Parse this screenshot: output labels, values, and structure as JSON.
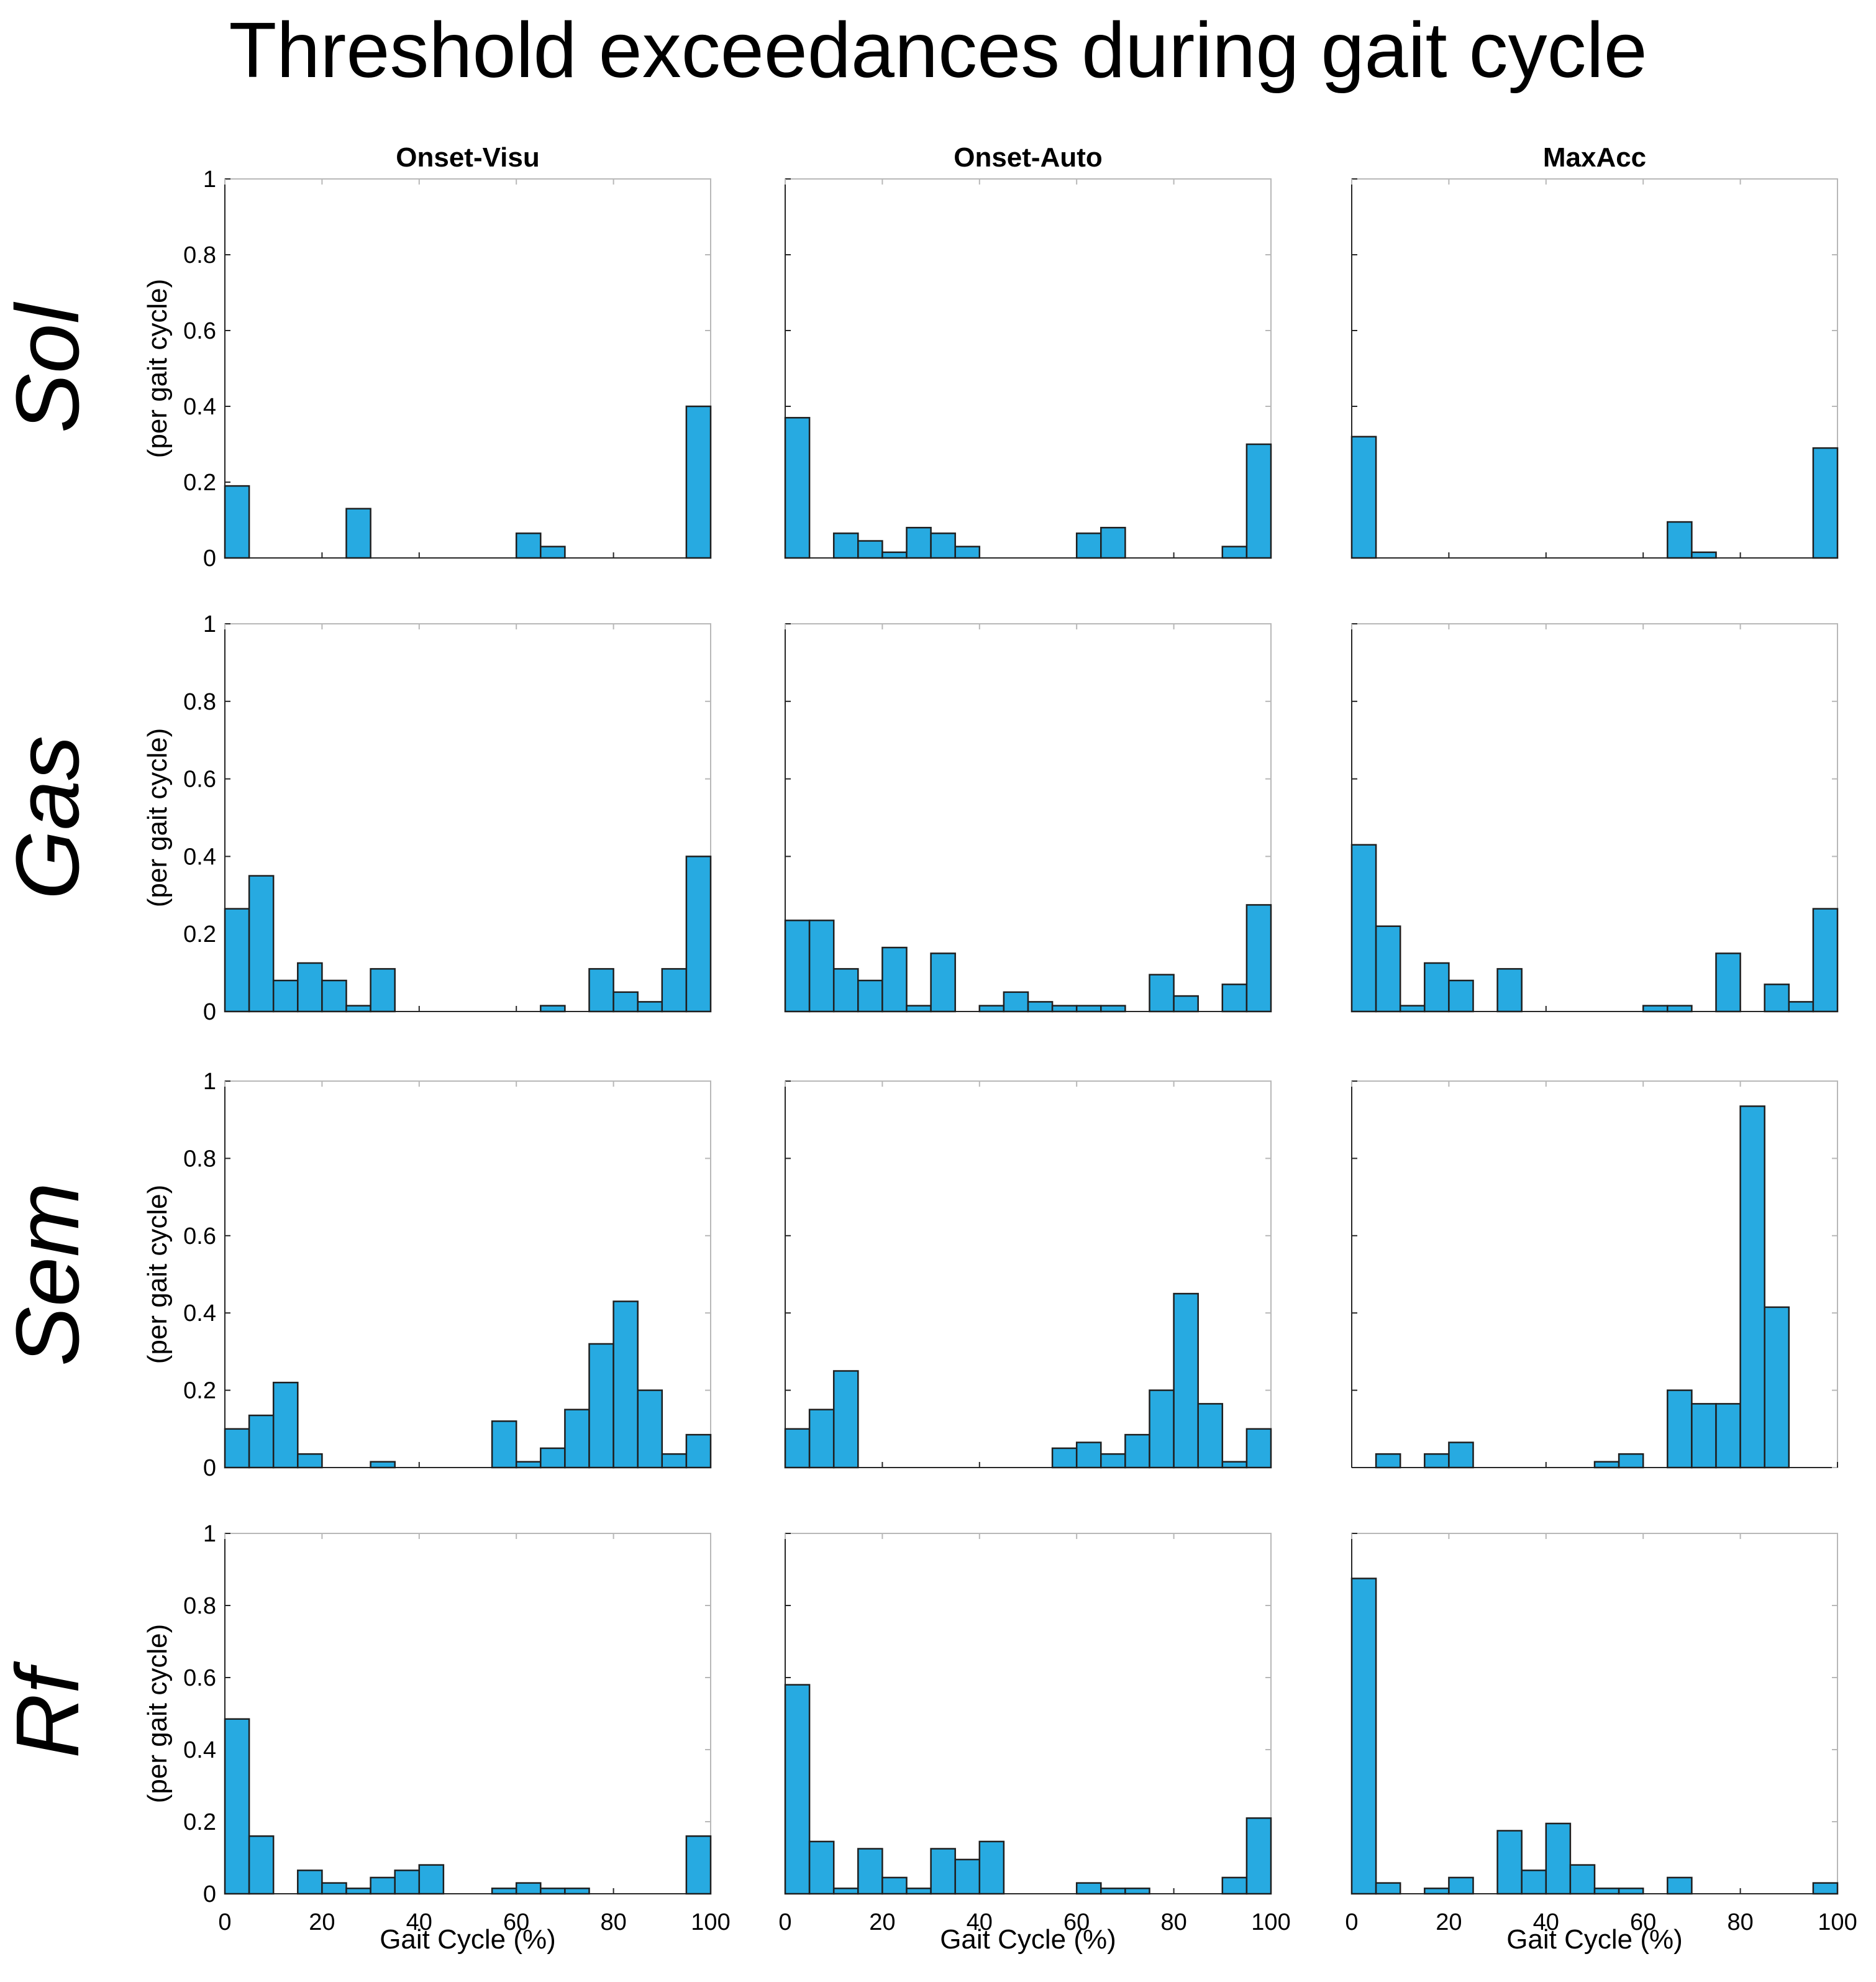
{
  "figure": {
    "title": "Threshold exceedances during gait cycle",
    "columns": [
      "Onset-Visu",
      "Onset-Auto",
      "MaxAcc"
    ],
    "rows": [
      "Sol",
      "Gas",
      "Sem",
      "Rf"
    ],
    "ylabel": "(per gait cycle)",
    "xlabel": "Gait Cycle (%)",
    "bar_color": "#27AAE1",
    "edge_color": "#1f1f1f"
  },
  "chart_data": {
    "type": "bar",
    "bin_edges": [
      0,
      5,
      10,
      15,
      20,
      25,
      30,
      35,
      40,
      45,
      50,
      55,
      60,
      65,
      70,
      75,
      80,
      85,
      90,
      95,
      100
    ],
    "xlim": [
      0,
      100
    ],
    "ylim": [
      0,
      1
    ],
    "xticks": [
      0,
      20,
      40,
      60,
      80,
      100
    ],
    "yticks": [
      0,
      0.2,
      0.4,
      0.6,
      0.8,
      1
    ],
    "panels": [
      {
        "row": "Sol",
        "col": "Onset-Visu",
        "values": [
          0.19,
          0,
          0,
          0,
          0,
          0.13,
          0,
          0,
          0,
          0,
          0,
          0,
          0.065,
          0.03,
          0,
          0,
          0,
          0,
          0,
          0.4
        ]
      },
      {
        "row": "Sol",
        "col": "Onset-Auto",
        "values": [
          0.37,
          0,
          0.065,
          0.045,
          0.015,
          0.08,
          0.065,
          0.03,
          0,
          0,
          0,
          0,
          0.065,
          0.08,
          0,
          0,
          0,
          0,
          0.03,
          0.3
        ]
      },
      {
        "row": "Sol",
        "col": "MaxAcc",
        "values": [
          0.32,
          0,
          0,
          0,
          0,
          0,
          0,
          0,
          0,
          0,
          0,
          0,
          0,
          0.095,
          0.015,
          0,
          0,
          0,
          0,
          0.29
        ]
      },
      {
        "row": "Gas",
        "col": "Onset-Visu",
        "values": [
          0.265,
          0.35,
          0.08,
          0.125,
          0.08,
          0.015,
          0.11,
          0,
          0,
          0,
          0,
          0,
          0,
          0.015,
          0,
          0.11,
          0.05,
          0.025,
          0.11,
          0.4
        ]
      },
      {
        "row": "Gas",
        "col": "Onset-Auto",
        "values": [
          0.235,
          0.235,
          0.11,
          0.08,
          0.165,
          0.015,
          0.15,
          0,
          0.015,
          0.05,
          0.025,
          0.015,
          0.015,
          0.015,
          0,
          0.095,
          0.04,
          0,
          0.07,
          0.275
        ]
      },
      {
        "row": "Gas",
        "col": "MaxAcc",
        "values": [
          0.43,
          0.22,
          0.015,
          0.125,
          0.08,
          0,
          0.11,
          0,
          0,
          0,
          0,
          0,
          0.015,
          0.015,
          0,
          0.15,
          0,
          0.07,
          0.025,
          0.265
        ]
      },
      {
        "row": "Sem",
        "col": "Onset-Visu",
        "values": [
          0.1,
          0.135,
          0.22,
          0.035,
          0,
          0,
          0.015,
          0,
          0,
          0,
          0,
          0.12,
          0.015,
          0.05,
          0.15,
          0.32,
          0.43,
          0.2,
          0.035,
          0.085
        ]
      },
      {
        "row": "Sem",
        "col": "Onset-Auto",
        "values": [
          0.1,
          0.15,
          0.25,
          0,
          0,
          0,
          0,
          0,
          0,
          0,
          0,
          0.05,
          0.065,
          0.035,
          0.085,
          0.2,
          0.45,
          0.165,
          0.015,
          0.1
        ]
      },
      {
        "row": "Sem",
        "col": "MaxAcc",
        "values": [
          0,
          0.035,
          0,
          0.035,
          0.065,
          0,
          0,
          0,
          0,
          0,
          0.015,
          0.035,
          0,
          0.2,
          0.165,
          0.165,
          0.935,
          0.415,
          0,
          0
        ]
      },
      {
        "row": "Rf",
        "col": "Onset-Visu",
        "values": [
          0.485,
          0.16,
          0,
          0.065,
          0.03,
          0.015,
          0.045,
          0.065,
          0.08,
          0,
          0,
          0.015,
          0.03,
          0.015,
          0.015,
          0,
          0,
          0,
          0,
          0.16
        ]
      },
      {
        "row": "Rf",
        "col": "Onset-Auto",
        "values": [
          0.58,
          0.145,
          0.015,
          0.125,
          0.045,
          0.015,
          0.125,
          0.095,
          0.145,
          0,
          0,
          0,
          0.03,
          0.015,
          0.015,
          0,
          0,
          0,
          0.045,
          0.21
        ]
      },
      {
        "row": "Rf",
        "col": "MaxAcc",
        "values": [
          0.875,
          0.03,
          0,
          0.015,
          0.045,
          0,
          0.175,
          0.065,
          0.195,
          0.08,
          0.015,
          0.015,
          0,
          0.045,
          0,
          0,
          0,
          0,
          0,
          0.03
        ]
      }
    ]
  }
}
